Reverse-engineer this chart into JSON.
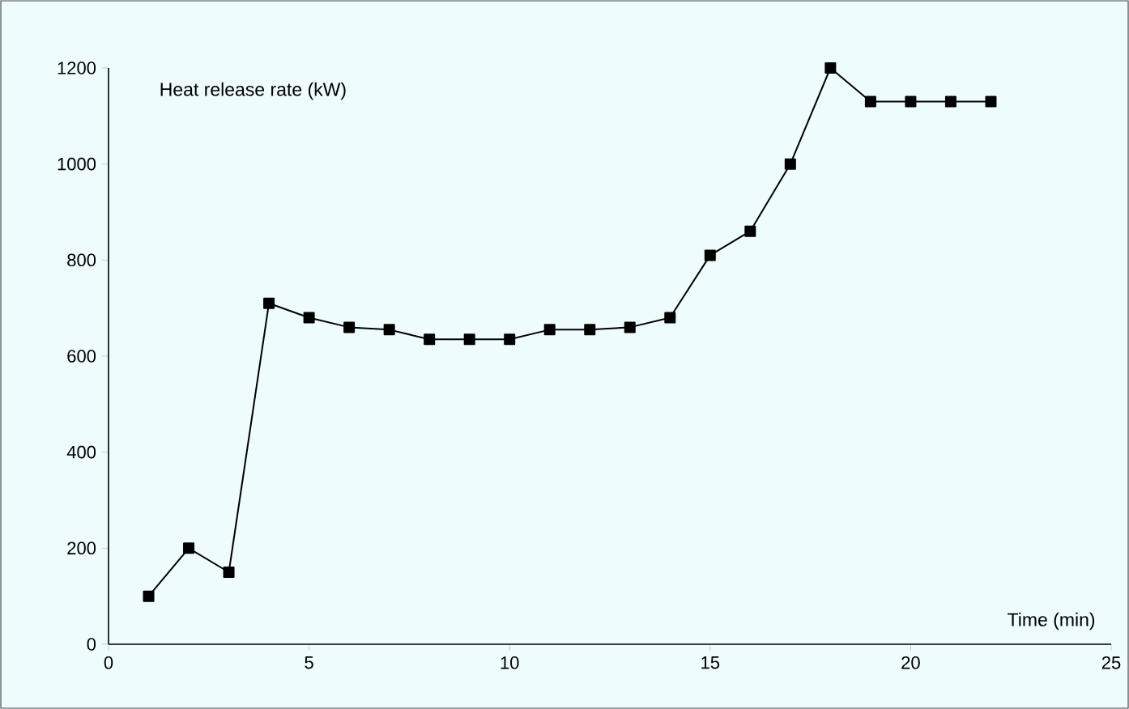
{
  "chart_data": {
    "type": "line",
    "xlabel": "Time (min)",
    "ylabel": "Heat release rate (kW)",
    "x": [
      1,
      2,
      3,
      4,
      5,
      6,
      7,
      8,
      9,
      10,
      11,
      12,
      13,
      14,
      15,
      16,
      17,
      18,
      19,
      20,
      21,
      22
    ],
    "series": [
      {
        "color": "#000000",
        "values": [
          100,
          200,
          150,
          710,
          680,
          660,
          655,
          635,
          635,
          635,
          655,
          655,
          660,
          680,
          810,
          860,
          1000,
          1200,
          1130,
          1130,
          1130,
          1130
        ]
      }
    ],
    "xlim": [
      0,
      25
    ],
    "xticks": [
      0,
      5,
      10,
      15,
      20,
      25
    ],
    "ylim": [
      0,
      1200
    ],
    "yticks": [
      0,
      200,
      400,
      600,
      800,
      1000,
      1200
    ],
    "marker": "square",
    "line_style": "solid"
  }
}
